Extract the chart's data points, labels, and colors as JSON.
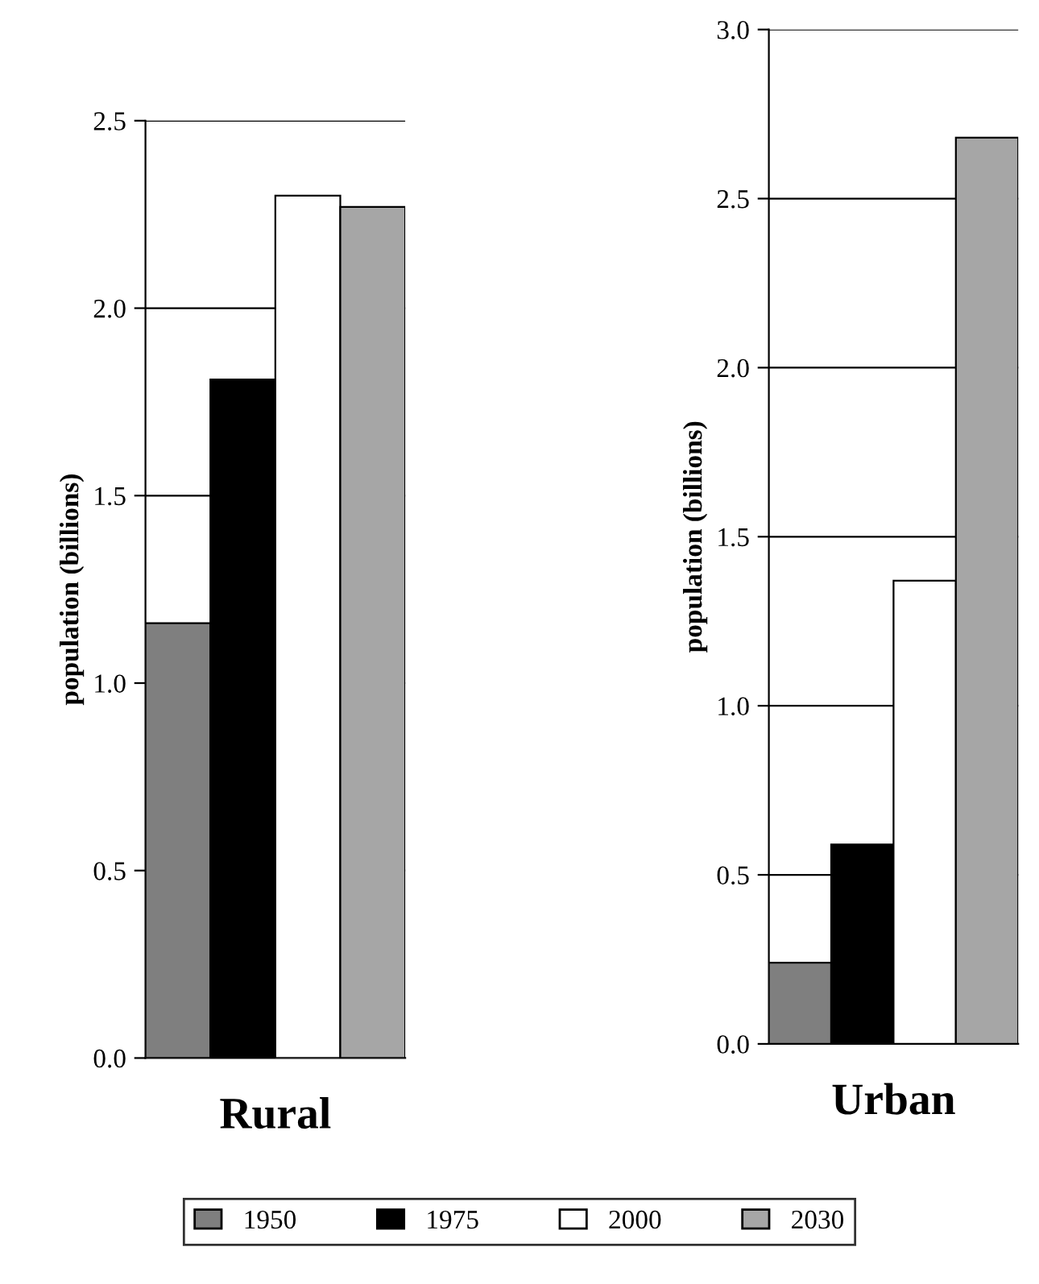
{
  "chart_data": [
    {
      "type": "bar",
      "categories": [
        null
      ],
      "xlabel": "Rural",
      "ylabel": "population (billions)",
      "ylim": [
        0,
        2.5
      ],
      "yticks": [
        {
          "value": 0,
          "label": "0.0"
        },
        {
          "value": 0.5,
          "label": "0.5"
        },
        {
          "value": 1,
          "label": "1.0"
        },
        {
          "value": 1.5,
          "label": "1.5"
        },
        {
          "value": 2,
          "label": "2.0"
        },
        {
          "value": 2.5,
          "label": "2.5"
        }
      ],
      "grid": "y",
      "legend": "bottom",
      "series": [
        {
          "name": "1950",
          "color": "#7f7f7f",
          "values": [
            1.16
          ]
        },
        {
          "name": "1975",
          "color": "#000000",
          "values": [
            1.81
          ]
        },
        {
          "name": "2000",
          "color": "#ffffff",
          "values": [
            2.3
          ]
        },
        {
          "name": "2030",
          "color": "#a6a6a6",
          "values": [
            2.27
          ]
        }
      ]
    },
    {
      "type": "bar",
      "categories": [
        null
      ],
      "xlabel": "Urban",
      "ylabel": "population (billions)",
      "ylim": [
        0,
        3.0
      ],
      "yticks": [
        {
          "value": 0,
          "label": "0.0"
        },
        {
          "value": 0.5,
          "label": "0.5"
        },
        {
          "value": 1,
          "label": "1.0"
        },
        {
          "value": 1.5,
          "label": "1.5"
        },
        {
          "value": 2,
          "label": "2.0"
        },
        {
          "value": 2.5,
          "label": "2.5"
        },
        {
          "value": 3,
          "label": "3.0"
        }
      ],
      "grid": "y",
      "legend": false,
      "series": [
        {
          "name": "1950",
          "color": "#7f7f7f",
          "values": [
            0.24
          ]
        },
        {
          "name": "1975",
          "color": "#000000",
          "values": [
            0.59
          ]
        },
        {
          "name": "2000",
          "color": "#ffffff",
          "values": [
            1.37
          ]
        },
        {
          "name": "2030",
          "color": "#a6a6a6",
          "values": [
            2.68
          ]
        }
      ]
    }
  ]
}
